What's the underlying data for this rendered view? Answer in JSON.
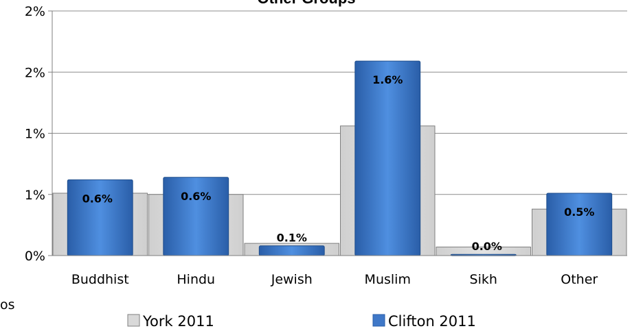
{
  "chart_data": {
    "type": "bar",
    "title": "Other Groups",
    "stray_text": "os",
    "categories": [
      "Buddhist",
      "Hindu",
      "Jewish",
      "Muslim",
      "Sikh",
      "Other"
    ],
    "y_ticks": [
      "0%",
      "1%",
      "1%",
      "2%",
      "2%"
    ],
    "ylim": [
      0,
      2
    ],
    "grid": true,
    "legend_position": "bottom",
    "series": [
      {
        "name": "York 2011",
        "values": [
          0.51,
          0.5,
          0.1,
          1.06,
          0.07,
          0.38
        ],
        "labels": [
          "",
          "",
          "",
          "",
          "",
          ""
        ],
        "color": "#d9d9d9"
      },
      {
        "name": "Clifton 2011",
        "values": [
          0.62,
          0.64,
          0.08,
          1.59,
          0.01,
          0.51
        ],
        "labels": [
          "0.6%",
          "0.6%",
          "0.1%",
          "1.6%",
          "0.0%",
          "0.5%"
        ],
        "color": "#3f78c8"
      }
    ]
  }
}
